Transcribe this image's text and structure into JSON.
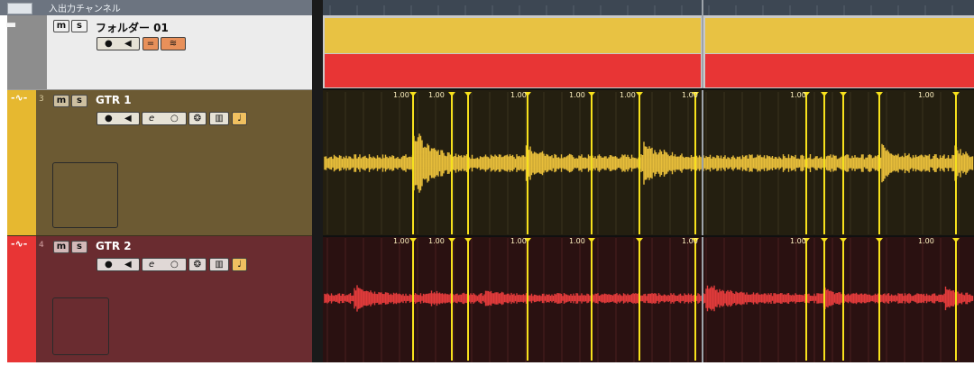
{
  "header": {
    "label": "入出力チャンネル"
  },
  "folder": {
    "name": "フォルダー 01",
    "mute": "m",
    "solo": "s"
  },
  "tracks": [
    {
      "number": "3",
      "name": "GTR 1",
      "mute": "m",
      "solo": "s",
      "color": "#e6b830",
      "body_color": "#6c5a33"
    },
    {
      "number": "4",
      "name": "GTR 2",
      "mute": "m",
      "solo": "s",
      "color": "#e83535",
      "body_color": "#6a2c30"
    }
  ],
  "colors": {
    "folder_part_yellow": "#e8c243",
    "folder_part_red": "#e83535",
    "wave_yellow": "#e8be3a",
    "wave_red": "#e23b3b",
    "hitpoint": "#f7e11c"
  },
  "icons": [
    "folder-icon",
    "audio-wave-icon",
    "record-icon",
    "monitor-icon",
    "edit-icon",
    "read-icon",
    "inserts-icon",
    "lanes-icon",
    "time-base-icon"
  ],
  "warp_markers": {
    "label": "1.00",
    "gtr1_labels": [
      "1.00",
      "1.00",
      "1.00",
      "1.00",
      "1.00",
      "1.00",
      "1.00",
      "1.00"
    ],
    "gtr2_labels": [
      "1.00",
      "1.00",
      "1.00",
      "1.00",
      "1.00",
      "1.00",
      "1.00"
    ]
  }
}
